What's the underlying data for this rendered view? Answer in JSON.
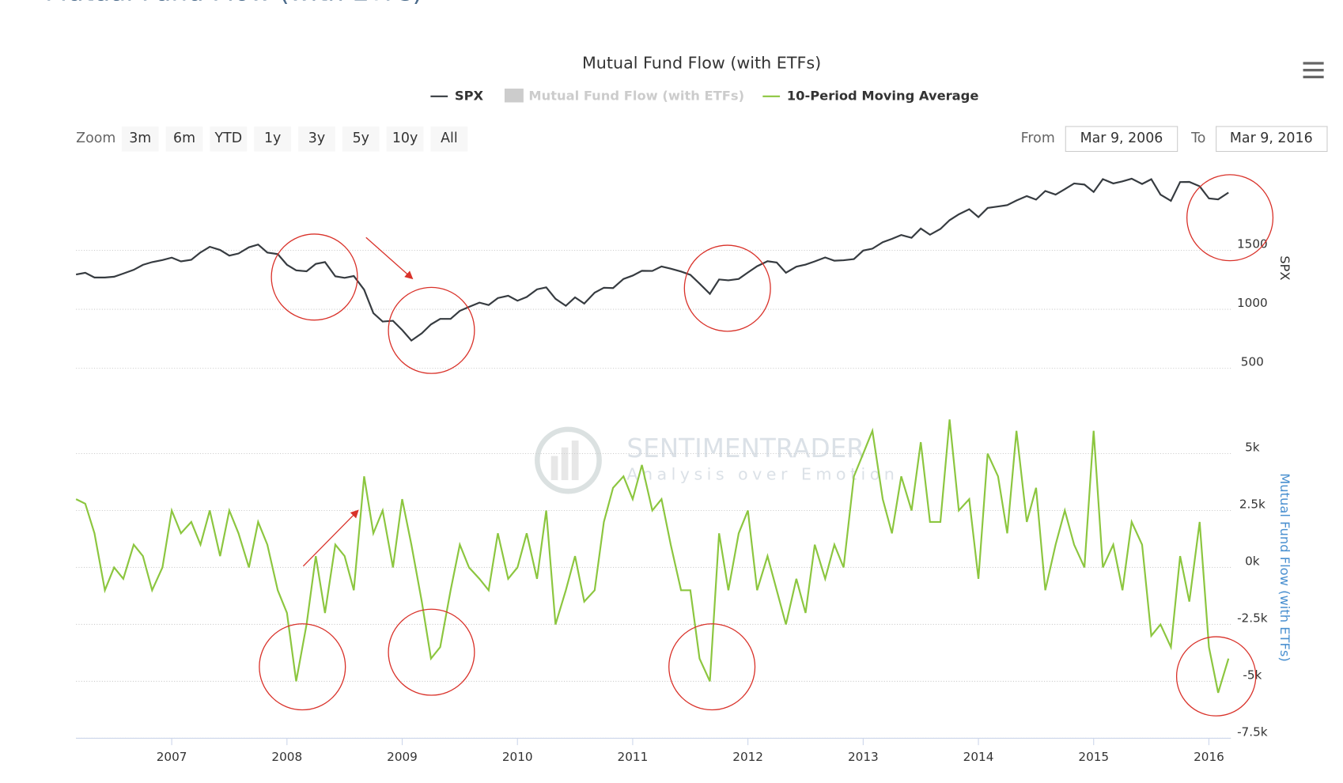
{
  "page": {
    "heading": "Mutual Fund Flow (with ETFs)",
    "zoom_label": "Zoom",
    "zoom_buttons": [
      "3m",
      "6m",
      "YTD",
      "1y",
      "3y",
      "5y",
      "10y",
      "All"
    ],
    "from_label": "From",
    "from": "Mar 9, 2006",
    "to_label": "To",
    "to": "Mar 9, 2016",
    "watermark": "SENTIMENTRADER",
    "watermark_tagline": "Analysis over Emotion"
  },
  "chart_data": {
    "type": "line",
    "title": "Mutual Fund Flow (with ETFs)",
    "y_label": "SPX",
    "y2_label": "Mutual Fund Flow (with ETFs)",
    "hidden_series": {
      "name": "Mutual Fund Flow (with ETFs)",
      "color": "#cccccc"
    },
    "x": [
      2006.17,
      2006.25,
      2006.33,
      2006.42,
      2006.5,
      2006.58,
      2006.67,
      2006.75,
      2006.83,
      2006.92,
      2007,
      2007.08,
      2007.17,
      2007.25,
      2007.33,
      2007.42,
      2007.5,
      2007.58,
      2007.67,
      2007.75,
      2007.83,
      2007.92,
      2008,
      2008.08,
      2008.17,
      2008.25,
      2008.33,
      2008.42,
      2008.5,
      2008.58,
      2008.67,
      2008.75,
      2008.83,
      2008.92,
      2009,
      2009.08,
      2009.17,
      2009.25,
      2009.33,
      2009.42,
      2009.5,
      2009.58,
      2009.67,
      2009.75,
      2009.83,
      2009.92,
      2010,
      2010.08,
      2010.17,
      2010.25,
      2010.33,
      2010.42,
      2010.5,
      2010.58,
      2010.67,
      2010.75,
      2010.83,
      2010.92,
      2011,
      2011.08,
      2011.17,
      2011.25,
      2011.33,
      2011.42,
      2011.5,
      2011.58,
      2011.67,
      2011.75,
      2011.83,
      2011.92,
      2012,
      2012.08,
      2012.17,
      2012.25,
      2012.33,
      2012.42,
      2012.5,
      2012.58,
      2012.67,
      2012.75,
      2012.83,
      2012.92,
      2013,
      2013.08,
      2013.17,
      2013.25,
      2013.33,
      2013.42,
      2013.5,
      2013.58,
      2013.67,
      2013.75,
      2013.83,
      2013.92,
      2014,
      2014.08,
      2014.17,
      2014.25,
      2014.33,
      2014.42,
      2014.5,
      2014.58,
      2014.67,
      2014.75,
      2014.83,
      2014.92,
      2015,
      2015.08,
      2015.17,
      2015.25,
      2015.33,
      2015.42,
      2015.5,
      2015.58,
      2015.67,
      2015.75,
      2015.83,
      2015.92,
      2016,
      2016.08,
      2016.17
    ],
    "series": [
      {
        "name": "SPX",
        "color": "#363b40",
        "axis": "y",
        "values": [
          1295,
          1310,
          1270,
          1270,
          1276,
          1303,
          1335,
          1377,
          1400,
          1418,
          1438,
          1406,
          1420,
          1482,
          1530,
          1503,
          1455,
          1473,
          1526,
          1549,
          1481,
          1468,
          1378,
          1330,
          1322,
          1385,
          1400,
          1280,
          1267,
          1282,
          1166,
          968,
          896,
          903,
          825,
          735,
          797,
          872,
          919,
          919,
          987,
          1020,
          1057,
          1036,
          1095,
          1115,
          1073,
          1104,
          1169,
          1186,
          1089,
          1030,
          1101,
          1049,
          1141,
          1183,
          1180,
          1257,
          1286,
          1327,
          1325,
          1363,
          1345,
          1320,
          1292,
          1218,
          1131,
          1253,
          1246,
          1257,
          1312,
          1365,
          1408,
          1397,
          1310,
          1362,
          1379,
          1406,
          1440,
          1412,
          1416,
          1426,
          1498,
          1514,
          1569,
          1597,
          1630,
          1606,
          1685,
          1632,
          1681,
          1756,
          1805,
          1848,
          1782,
          1859,
          1872,
          1883,
          1923,
          1960,
          1930,
          2003,
          1972,
          2018,
          2067,
          2058,
          1995,
          2104,
          2067,
          2085,
          2107,
          2063,
          2103,
          1972,
          1920,
          2079,
          2080,
          2043,
          1940,
          1932,
          1990
        ]
      },
      {
        "name": "10-Period Moving Average",
        "color": "#8cc63f",
        "axis": "y2",
        "values": [
          3000,
          2800,
          1500,
          -1000,
          0,
          -500,
          1000,
          500,
          -1000,
          0,
          2500,
          1500,
          2000,
          1000,
          2500,
          500,
          2500,
          1500,
          0,
          2000,
          1000,
          -1000,
          -2000,
          -5000,
          -2500,
          500,
          -2000,
          1000,
          500,
          -1000,
          4000,
          1500,
          2500,
          0,
          3000,
          1000,
          -1500,
          -4000,
          -3500,
          -1000,
          1000,
          0,
          -500,
          -1000,
          1500,
          -500,
          0,
          1500,
          -500,
          2500,
          -2500,
          -1000,
          500,
          -1500,
          -1000,
          2000,
          3500,
          4000,
          3000,
          4500,
          2500,
          3000,
          1000,
          -1000,
          -1000,
          -4000,
          -5000,
          1500,
          -1000,
          1500,
          2500,
          -1000,
          500,
          -1000,
          -2500,
          -500,
          -2000,
          1000,
          -500,
          1000,
          0,
          4000,
          5000,
          6000,
          3000,
          1500,
          4000,
          2500,
          5500,
          2000,
          2000,
          6500,
          2500,
          3000,
          -500,
          5000,
          4000,
          1500,
          6000,
          2000,
          3500,
          -1000,
          1000,
          2500,
          1000,
          0,
          6000,
          0,
          1000,
          -1000,
          2000,
          1000,
          -3000,
          -2500,
          -3500,
          500,
          -1500,
          2000,
          -3500,
          -5500,
          -4000
        ]
      }
    ],
    "xlim": [
      2006.17,
      2016.19
    ],
    "xticks": [
      2007,
      2008,
      2009,
      2010,
      2011,
      2012,
      2013,
      2014,
      2015,
      2016
    ],
    "ylim": [
      500,
      2200
    ],
    "yticks": [
      500,
      1000,
      1500
    ],
    "y2lim": [
      -7500,
      7500
    ],
    "y2ticks": [
      {
        "value": -7500,
        "label": "-7.5k"
      },
      {
        "value": -5000,
        "label": "-5k"
      },
      {
        "value": -2500,
        "label": "-2.5k"
      },
      {
        "value": 0,
        "label": "0k"
      },
      {
        "value": 2500,
        "label": "2.5k"
      },
      {
        "value": 5000,
        "label": "5k"
      }
    ],
    "grid": true
  }
}
